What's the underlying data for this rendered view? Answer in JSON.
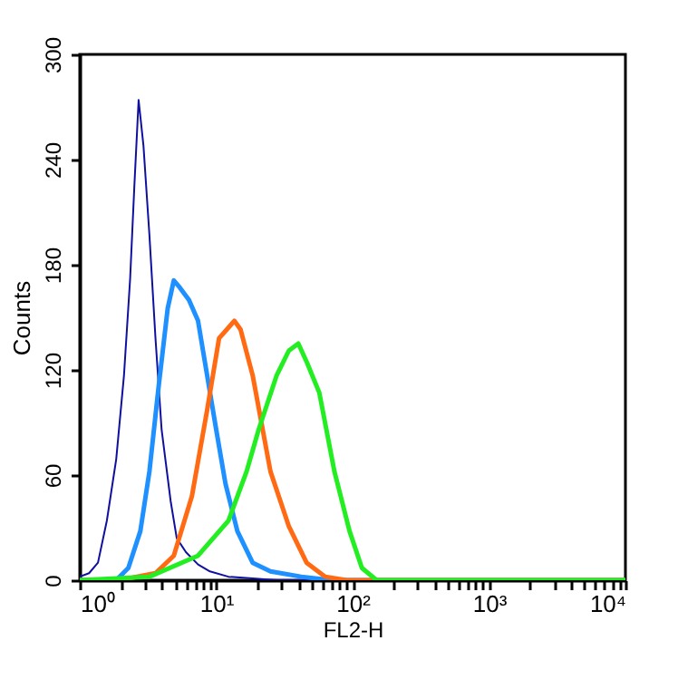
{
  "chart_data": {
    "type": "line",
    "xlabel": "FL2-H",
    "ylabel": "Counts",
    "log": "x",
    "grid": false,
    "legend": false,
    "marker": "none",
    "line_style": "solid",
    "xlim": [
      1,
      10000
    ],
    "xticks": [
      {
        "value": 1,
        "label": "10⁰"
      },
      {
        "value": 2,
        "label": null
      },
      {
        "value": 3,
        "label": null
      },
      {
        "value": 4,
        "label": null
      },
      {
        "value": 5,
        "label": null
      },
      {
        "value": 6,
        "label": null
      },
      {
        "value": 7,
        "label": null
      },
      {
        "value": 8,
        "label": null
      },
      {
        "value": 9,
        "label": null
      },
      {
        "value": 10,
        "label": "10¹"
      },
      {
        "value": 20,
        "label": null
      },
      {
        "value": 30,
        "label": null
      },
      {
        "value": 40,
        "label": null
      },
      {
        "value": 50,
        "label": null
      },
      {
        "value": 60,
        "label": null
      },
      {
        "value": 70,
        "label": null
      },
      {
        "value": 80,
        "label": null
      },
      {
        "value": 90,
        "label": null
      },
      {
        "value": 100,
        "label": "10²"
      },
      {
        "value": 200,
        "label": null
      },
      {
        "value": 300,
        "label": null
      },
      {
        "value": 400,
        "label": null
      },
      {
        "value": 500,
        "label": null
      },
      {
        "value": 600,
        "label": null
      },
      {
        "value": 700,
        "label": null
      },
      {
        "value": 800,
        "label": null
      },
      {
        "value": 900,
        "label": null
      },
      {
        "value": 1000,
        "label": "10³"
      },
      {
        "value": 2000,
        "label": null
      },
      {
        "value": 3000,
        "label": null
      },
      {
        "value": 4000,
        "label": null
      },
      {
        "value": 5000,
        "label": null
      },
      {
        "value": 6000,
        "label": null
      },
      {
        "value": 7000,
        "label": null
      },
      {
        "value": 8000,
        "label": null
      },
      {
        "value": 9000,
        "label": null
      },
      {
        "value": 10000,
        "label": "10⁴"
      }
    ],
    "ylim": [
      0,
      300
    ],
    "yticks": [
      0,
      60,
      120,
      180,
      240,
      300
    ],
    "series": [
      {
        "color": "#1010a0",
        "x": [
          1,
          1.17,
          1.36,
          1.58,
          1.85,
          2.11,
          2.34,
          2.51,
          2.7,
          2.93,
          3.24,
          3.59,
          3.98,
          4.64,
          5.14,
          6.0,
          7.36,
          9.0,
          12.3,
          18.5,
          27.8,
          10000
        ],
        "values": [
          2,
          4,
          10,
          34,
          69,
          117,
          172,
          224,
          274,
          248,
          197,
          138,
          86,
          45,
          24,
          16,
          9,
          5,
          2,
          1,
          0,
          0
        ]
      },
      {
        "color": "#1e90ff",
        "x": [
          1,
          1.85,
          2.27,
          2.78,
          3.24,
          3.78,
          4.41,
          4.89,
          5.41,
          6.31,
          7.36,
          8.58,
          10,
          11.7,
          14.3,
          18.5,
          25,
          42,
          70,
          10000
        ],
        "values": [
          0,
          0,
          7,
          28,
          62,
          110,
          155,
          171,
          167,
          160,
          148,
          117,
          86,
          55,
          28,
          10,
          5,
          2,
          0,
          0
        ]
      },
      {
        "color": "#ff6a13",
        "x": [
          1,
          1.95,
          3.59,
          4.89,
          6.64,
          8.58,
          10.5,
          13.6,
          15.1,
          18.5,
          25,
          34,
          46,
          63,
          90,
          10000
        ],
        "values": [
          0,
          0,
          4,
          14,
          48,
          97,
          138,
          148,
          143,
          117,
          62,
          31,
          10,
          2,
          0,
          0
        ]
      },
      {
        "color": "#22ee22",
        "x": [
          1,
          3.24,
          7.36,
          12.3,
          16.7,
          20.5,
          27.8,
          34.1,
          40,
          46.4,
          57,
          73.6,
          95,
          117,
          150,
          10000
        ],
        "values": [
          0,
          2,
          14,
          34,
          62,
          86,
          117,
          131,
          135,
          124,
          107,
          62,
          28,
          7,
          0,
          0
        ]
      }
    ]
  }
}
